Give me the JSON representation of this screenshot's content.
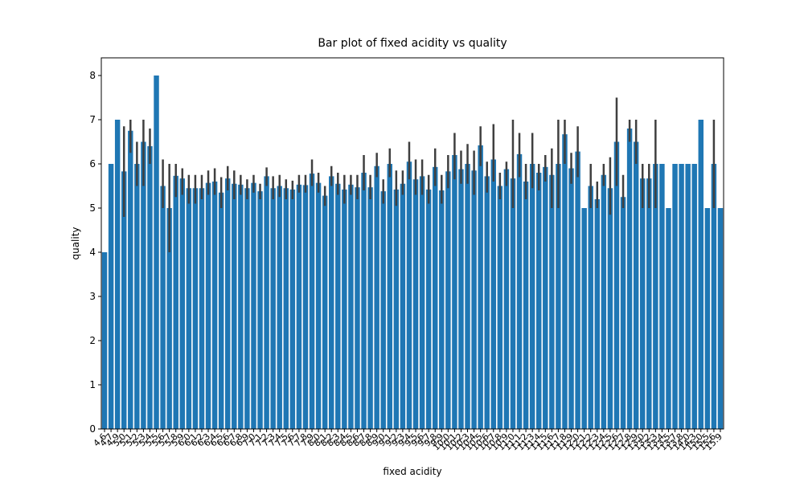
{
  "chart_data": {
    "type": "bar",
    "title": "Bar plot of fixed acidity vs quality",
    "xlabel": "fixed acidity",
    "ylabel": "quality",
    "color": "#1f77b4",
    "errcolor": "#3f3f3f",
    "categories": [
      "4.6",
      "4.7",
      "4.9",
      "5.0",
      "5.1",
      "5.2",
      "5.3",
      "5.4",
      "5.5",
      "5.6",
      "5.7",
      "5.8",
      "5.9",
      "6.0",
      "6.1",
      "6.2",
      "6.3",
      "6.4",
      "6.5",
      "6.6",
      "6.7",
      "6.8",
      "6.9",
      "7.0",
      "7.1",
      "7.2",
      "7.3",
      "7.4",
      "7.5",
      "7.6",
      "7.7",
      "7.8",
      "7.9",
      "8.0",
      "8.1",
      "8.2",
      "8.3",
      "8.4",
      "8.5",
      "8.6",
      "8.7",
      "8.8",
      "8.9",
      "9.0",
      "9.1",
      "9.2",
      "9.3",
      "9.4",
      "9.5",
      "9.6",
      "9.7",
      "9.8",
      "9.9",
      "10.0",
      "10.1",
      "10.2",
      "10.3",
      "10.4",
      "10.5",
      "10.6",
      "10.7",
      "10.8",
      "10.9",
      "11.0",
      "11.1",
      "11.2",
      "11.3",
      "11.4",
      "11.5",
      "11.6",
      "11.7",
      "11.8",
      "11.9",
      "12.0",
      "12.1",
      "12.2",
      "12.3",
      "12.4",
      "12.5",
      "12.6",
      "12.7",
      "12.8",
      "12.9",
      "13.0",
      "13.2",
      "13.3",
      "13.4",
      "13.5",
      "13.7",
      "13.8",
      "14.0",
      "14.3",
      "15.0",
      "15.5",
      "15.6",
      "15.9"
    ],
    "values": [
      4.0,
      6.0,
      7.0,
      5.83,
      6.75,
      6.0,
      6.5,
      6.4,
      8.0,
      5.5,
      5.0,
      5.73,
      5.67,
      5.45,
      5.45,
      5.45,
      5.57,
      5.6,
      5.35,
      5.67,
      5.55,
      5.53,
      5.45,
      5.57,
      5.38,
      5.72,
      5.45,
      5.5,
      5.45,
      5.42,
      5.53,
      5.52,
      5.78,
      5.57,
      5.28,
      5.72,
      5.55,
      5.42,
      5.53,
      5.47,
      5.8,
      5.47,
      5.95,
      5.38,
      6.0,
      5.42,
      5.55,
      6.05,
      5.65,
      5.72,
      5.42,
      5.93,
      5.4,
      5.83,
      6.2,
      5.88,
      6.0,
      5.85,
      6.42,
      5.72,
      6.1,
      5.5,
      5.88,
      5.67,
      6.22,
      5.6,
      6.0,
      5.8,
      5.93,
      5.75,
      6.0,
      6.67,
      5.9,
      6.28,
      5.0,
      5.5,
      5.2,
      5.75,
      5.45,
      6.5,
      5.25,
      6.8,
      6.5,
      5.67,
      5.67,
      6.0,
      6.0,
      5.0,
      6.0,
      6.0,
      6.0,
      6.0,
      7.0,
      5.0,
      6.0,
      5.0
    ],
    "ci": [
      null,
      null,
      null,
      [
        4.8,
        6.85
      ],
      [
        6.25,
        7.0
      ],
      [
        5.5,
        6.5
      ],
      [
        5.5,
        7.0
      ],
      [
        6.0,
        6.8
      ],
      null,
      [
        5.0,
        6.1
      ],
      [
        4.0,
        6.0
      ],
      [
        5.25,
        6.0
      ],
      [
        5.3,
        5.9
      ],
      [
        5.1,
        5.75
      ],
      [
        5.1,
        5.75
      ],
      [
        5.2,
        5.75
      ],
      [
        5.3,
        5.85
      ],
      [
        5.3,
        5.9
      ],
      [
        5.0,
        5.7
      ],
      [
        5.4,
        5.95
      ],
      [
        5.2,
        5.85
      ],
      [
        5.3,
        5.75
      ],
      [
        5.2,
        5.65
      ],
      [
        5.35,
        5.75
      ],
      [
        5.2,
        5.55
      ],
      [
        5.5,
        5.92
      ],
      [
        5.2,
        5.72
      ],
      [
        5.25,
        5.75
      ],
      [
        5.2,
        5.65
      ],
      [
        5.2,
        5.62
      ],
      [
        5.35,
        5.75
      ],
      [
        5.35,
        5.75
      ],
      [
        5.5,
        6.1
      ],
      [
        5.35,
        5.8
      ],
      [
        5.05,
        5.5
      ],
      [
        5.5,
        5.95
      ],
      [
        5.3,
        5.8
      ],
      [
        5.1,
        5.75
      ],
      [
        5.3,
        5.75
      ],
      [
        5.2,
        5.75
      ],
      [
        5.4,
        6.2
      ],
      [
        5.2,
        5.75
      ],
      [
        5.7,
        6.25
      ],
      [
        5.1,
        5.65
      ],
      [
        5.7,
        6.35
      ],
      [
        5.05,
        5.85
      ],
      [
        5.3,
        5.85
      ],
      [
        5.65,
        6.5
      ],
      [
        5.3,
        6.1
      ],
      [
        5.3,
        6.1
      ],
      [
        5.1,
        5.75
      ],
      [
        5.5,
        6.35
      ],
      [
        5.1,
        5.75
      ],
      [
        5.45,
        6.2
      ],
      [
        5.65,
        6.7
      ],
      [
        5.55,
        6.3
      ],
      [
        5.55,
        6.45
      ],
      [
        5.3,
        6.3
      ],
      [
        5.95,
        6.85
      ],
      [
        5.35,
        6.05
      ],
      [
        5.6,
        6.9
      ],
      [
        5.2,
        5.8
      ],
      [
        5.5,
        6.05
      ],
      [
        5.0,
        7.0
      ],
      [
        5.7,
        6.7
      ],
      [
        5.2,
        6.0
      ],
      [
        5.45,
        6.7
      ],
      [
        5.4,
        6.0
      ],
      [
        5.6,
        6.2
      ],
      [
        5.0,
        6.35
      ],
      [
        5.0,
        7.0
      ],
      [
        6.0,
        7.0
      ],
      [
        5.55,
        6.25
      ],
      [
        5.7,
        6.85
      ],
      null,
      [
        5.0,
        6.0
      ],
      [
        5.0,
        5.6
      ],
      [
        5.5,
        6.0
      ],
      [
        4.85,
        6.15
      ],
      [
        5.5,
        7.5
      ],
      [
        5.0,
        5.75
      ],
      [
        6.5,
        7.0
      ],
      [
        6.0,
        7.0
      ],
      [
        5.0,
        6.0
      ],
      [
        5.0,
        6.0
      ],
      [
        5.0,
        7.0
      ],
      null,
      null,
      null,
      null,
      null,
      null,
      null,
      null,
      [
        5.0,
        7.0
      ],
      null
    ],
    "ylim": [
      0,
      8.4
    ],
    "yticks": [
      0,
      1,
      2,
      3,
      4,
      5,
      6,
      7,
      8
    ]
  }
}
